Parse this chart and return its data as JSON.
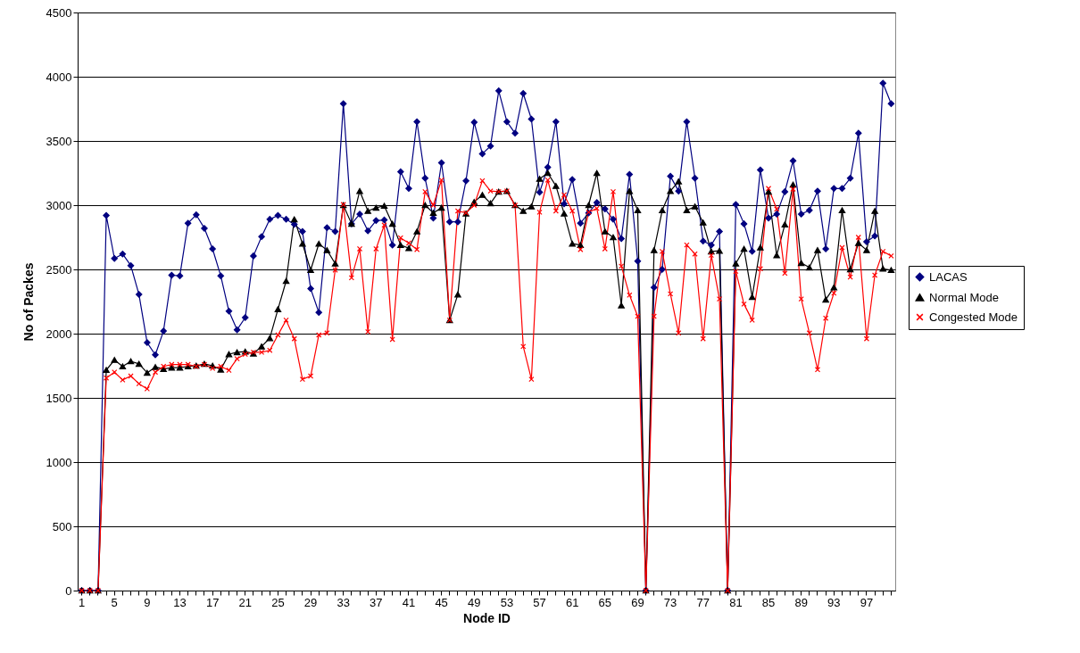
{
  "chart_data": {
    "type": "line",
    "xlabel": "Node ID",
    "ylabel": "No of Packes",
    "categories": [
      "1",
      null,
      null,
      null,
      "5",
      null,
      null,
      null,
      "9",
      null,
      null,
      null,
      "13",
      null,
      null,
      null,
      "17",
      null,
      null,
      null,
      "21",
      null,
      null,
      null,
      "25",
      null,
      null,
      null,
      "29",
      null,
      null,
      null,
      "33",
      null,
      null,
      null,
      "37",
      null,
      null,
      null,
      "41",
      null,
      null,
      null,
      "45",
      null,
      null,
      null,
      "49",
      null,
      null,
      null,
      "53",
      null,
      null,
      null,
      "57",
      null,
      null,
      null,
      "61",
      null,
      null,
      null,
      "65",
      null,
      null,
      null,
      "69",
      null,
      null,
      null,
      "73",
      null,
      null,
      null,
      "77",
      null,
      null,
      null,
      "81",
      null,
      null,
      null,
      "85",
      null,
      null,
      null,
      "89",
      null,
      null,
      null,
      "93",
      null,
      null,
      null,
      "97",
      null,
      null,
      null
    ],
    "ylim": [
      0,
      4500
    ],
    "yticks": [
      0,
      500,
      1000,
      1500,
      2000,
      2500,
      3000,
      3500,
      4000,
      4500
    ],
    "grid": "y",
    "legend": "right",
    "series": [
      {
        "name": "LACAS",
        "color": "#000080",
        "marker": "diamond",
        "values": [
          0,
          0,
          0,
          2920,
          2585,
          2620,
          2530,
          2305,
          1930,
          1835,
          2020,
          2455,
          2450,
          2860,
          2925,
          2820,
          2660,
          2450,
          2175,
          2030,
          2125,
          2605,
          2755,
          2890,
          2920,
          2890,
          2850,
          2795,
          2350,
          2165,
          2825,
          2795,
          3790,
          2855,
          2930,
          2800,
          2880,
          2885,
          2690,
          3260,
          3130,
          3650,
          3210,
          2900,
          3330,
          2870,
          2870,
          3190,
          3645,
          3400,
          3460,
          3890,
          3650,
          3560,
          3870,
          3670,
          3100,
          3295,
          3650,
          3010,
          3200,
          2860,
          2940,
          3020,
          2970,
          2890,
          2740,
          3240,
          2565,
          0,
          2360,
          2500,
          3225,
          3110,
          3650,
          3210,
          2720,
          2690,
          2795,
          0,
          3005,
          2855,
          2640,
          3275,
          2900,
          2930,
          3105,
          3345,
          2930,
          2960,
          3110,
          2660,
          3130,
          3130,
          3210,
          3560,
          2715,
          2760,
          3950,
          3790
        ]
      },
      {
        "name": "Normal Mode",
        "color": "#000000",
        "marker": "triangle",
        "values": [
          0,
          0,
          0,
          1717,
          1795,
          1745,
          1785,
          1765,
          1695,
          1740,
          1725,
          1735,
          1735,
          1745,
          1750,
          1765,
          1750,
          1720,
          1840,
          1855,
          1860,
          1845,
          1900,
          1965,
          2190,
          2410,
          2890,
          2700,
          2495,
          2700,
          2650,
          2545,
          3000,
          2855,
          3110,
          2955,
          2980,
          2995,
          2855,
          2690,
          2665,
          2795,
          3000,
          2940,
          2980,
          2105,
          2305,
          2935,
          3025,
          3080,
          3015,
          3105,
          3110,
          3000,
          2955,
          2990,
          3205,
          3250,
          3150,
          2935,
          2700,
          2690,
          3000,
          3250,
          2795,
          2750,
          2220,
          3110,
          2960,
          0,
          2650,
          2960,
          3110,
          3185,
          2960,
          2990,
          2865,
          2640,
          2645,
          0,
          2545,
          2660,
          2285,
          2670,
          3105,
          2610,
          2850,
          3160,
          2550,
          2515,
          2650,
          2265,
          2360,
          2960,
          2500,
          2705,
          2650,
          2955,
          2505,
          2495
        ]
      },
      {
        "name": "Congested Mode",
        "color": "#ff0000",
        "marker": "cross",
        "values": [
          0,
          0,
          0,
          1655,
          1700,
          1640,
          1670,
          1610,
          1570,
          1700,
          1745,
          1760,
          1760,
          1760,
          1745,
          1760,
          1730,
          1745,
          1715,
          1805,
          1840,
          1855,
          1855,
          1870,
          1990,
          2105,
          1960,
          1645,
          1670,
          1990,
          2005,
          2495,
          3005,
          2435,
          2660,
          2015,
          2660,
          2845,
          1955,
          2745,
          2705,
          2655,
          3105,
          3000,
          3195,
          2105,
          2955,
          2940,
          3000,
          3190,
          3110,
          3105,
          3110,
          3000,
          1900,
          1645,
          2945,
          3195,
          2955,
          3080,
          2955,
          2655,
          2945,
          2975,
          2660,
          3105,
          2525,
          2300,
          2135,
          0,
          2135,
          2640,
          2310,
          2005,
          2690,
          2620,
          1960,
          2610,
          2270,
          0,
          2485,
          2230,
          2105,
          2505,
          3130,
          2970,
          2470,
          3125,
          2270,
          2005,
          1720,
          2120,
          2315,
          2670,
          2440,
          2750,
          1960,
          2455,
          2640,
          2605
        ]
      }
    ]
  }
}
